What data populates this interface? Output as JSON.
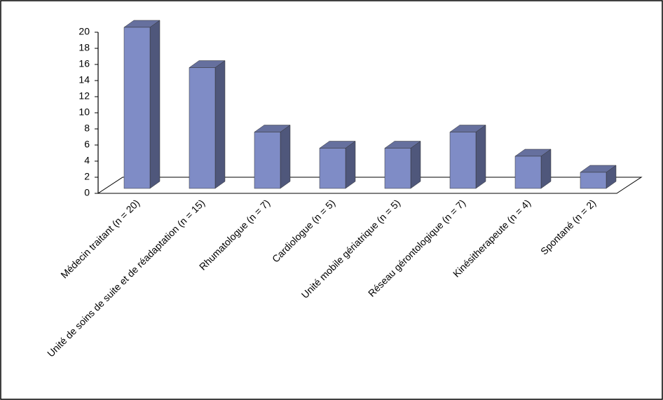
{
  "chart_data": {
    "type": "bar3d",
    "categories": [
      "Médecin traitant (n = 20)",
      "Unité de soins de suite et de réadaptation (n = 15)",
      "Rhumatologue (n = 7)",
      "Cardiologue (n = 5)",
      "Unité mobile gériatrique (n = 5)",
      "Réseau gérontologique (n = 7)",
      "Kinésitherapeute (n = 4)",
      "Spontané (n = 2)"
    ],
    "values": [
      20,
      15,
      7,
      5,
      5,
      7,
      4,
      2
    ],
    "color": "#7f8cc6",
    "ylim": [
      0,
      20
    ],
    "yticks": [
      0,
      2,
      4,
      6,
      8,
      10,
      12,
      14,
      16,
      18,
      20
    ]
  }
}
